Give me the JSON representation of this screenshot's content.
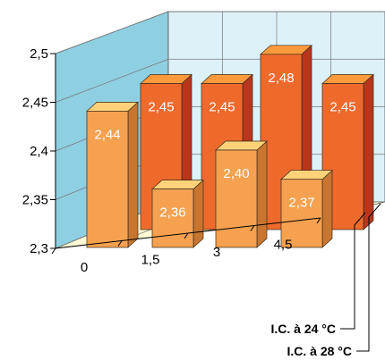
{
  "chart_data": {
    "type": "bar",
    "categories": [
      "0",
      "1,5",
      "3",
      "4,5"
    ],
    "series": [
      {
        "name": "I.C. à 24 °C",
        "values": [
          2.44,
          2.36,
          2.4,
          2.37
        ],
        "labels": [
          "2,44",
          "2,36",
          "2,40",
          "2,37"
        ]
      },
      {
        "name": "I.C. à 28 °C",
        "values": [
          2.45,
          2.45,
          2.48,
          2.45
        ],
        "labels": [
          "2,45",
          "2,45",
          "2,48",
          "2,45"
        ]
      }
    ],
    "y_ticks": [
      2.3,
      2.35,
      2.4,
      2.45,
      2.5
    ],
    "y_tick_labels": [
      "2,3",
      "2,35",
      "2,4",
      "2,45",
      "2,5"
    ],
    "ylim": [
      2.3,
      2.5
    ],
    "title": "",
    "xlabel": "",
    "ylabel": "",
    "grid": true,
    "style": "3d-column",
    "colors": {
      "series_front": {
        "front": "#F5A14F",
        "side": "#C87530",
        "top": "#FFD27A"
      },
      "series_back": {
        "front": "#EE6A2C",
        "side": "#B9361C",
        "top": "#FF9A3C"
      },
      "left_wall": "#8FCFE2",
      "back_wall": "#DDF2F8",
      "floor": "#FFFBD6"
    }
  }
}
